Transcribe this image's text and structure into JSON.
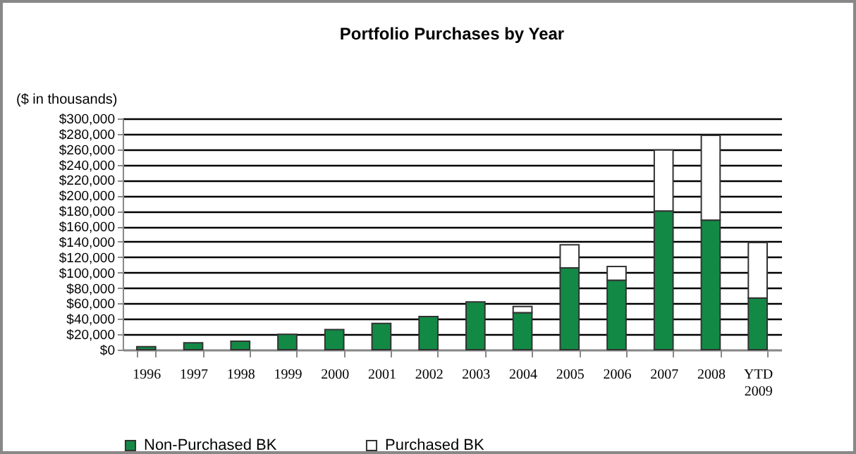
{
  "chart_data": {
    "type": "bar",
    "title": "Portfolio Purchases by Year",
    "ylabel": "($ in thousands)",
    "categories": [
      "1996",
      "1997",
      "1998",
      "1999",
      "2000",
      "2001",
      "2002",
      "2003",
      "2004",
      "2005",
      "2006",
      "2007",
      "2008",
      "YTD 2009"
    ],
    "stacked": true,
    "series": [
      {
        "name": "Non-Purchased BK",
        "color": "#128a45",
        "values": [
          4000,
          9000,
          11000,
          20000,
          26000,
          34000,
          43000,
          62000,
          48000,
          106000,
          90000,
          180000,
          168000,
          67000
        ]
      },
      {
        "name": "Purchased BK",
        "color": "#ffffff",
        "values": [
          null,
          null,
          null,
          null,
          null,
          null,
          null,
          null,
          8000,
          30000,
          18000,
          79000,
          110000,
          72000
        ]
      }
    ],
    "ylim": [
      0,
      300000
    ],
    "yticks": [
      {
        "value": 0,
        "label": "$0"
      },
      {
        "value": 20000,
        "label": "$20,000"
      },
      {
        "value": 40000,
        "label": "$40,000"
      },
      {
        "value": 60000,
        "label": "$60,000"
      },
      {
        "value": 80000,
        "label": "$80,000"
      },
      {
        "value": 100000,
        "label": "$100,000"
      },
      {
        "value": 120000,
        "label": "$120,000"
      },
      {
        "value": 140000,
        "label": "$140,000"
      },
      {
        "value": 160000,
        "label": "$160,000"
      },
      {
        "value": 180000,
        "label": "$180,000"
      },
      {
        "value": 200000,
        "label": "$200,000"
      },
      {
        "value": 220000,
        "label": "$220,000"
      },
      {
        "value": 240000,
        "label": "$240,000"
      },
      {
        "value": 260000,
        "label": "$260,000"
      },
      {
        "value": 280000,
        "label": "$280,000"
      },
      {
        "value": 300000,
        "label": "$300,000"
      }
    ],
    "grid": "y",
    "legend": "bottom"
  }
}
